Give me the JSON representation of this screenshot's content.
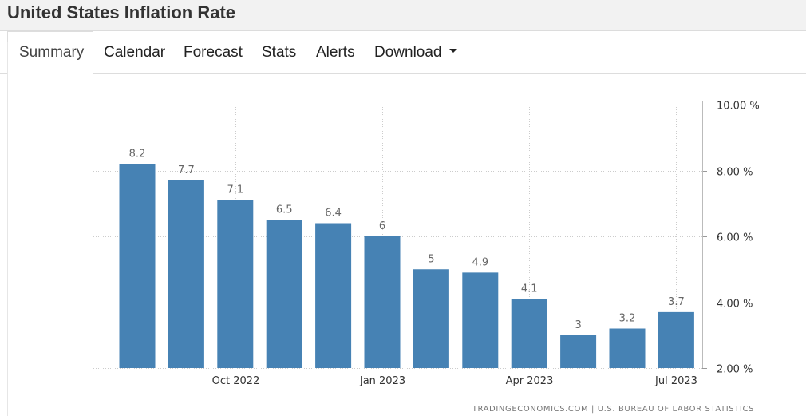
{
  "header": {
    "title": "United States Inflation Rate"
  },
  "tabs": [
    {
      "label": "Summary",
      "active": true
    },
    {
      "label": "Calendar"
    },
    {
      "label": "Forecast"
    },
    {
      "label": "Stats"
    },
    {
      "label": "Alerts"
    },
    {
      "label": "Download",
      "has_dropdown": true,
      "icon": "caret-down-icon"
    }
  ],
  "chart_data": {
    "type": "bar",
    "categories": [
      "2022-08",
      "2022-09",
      "2022-10",
      "2022-11",
      "2022-12",
      "2023-01",
      "2023-02",
      "2023-03",
      "2023-04",
      "2023-05",
      "2023-06",
      "2023-07"
    ],
    "values": [
      8.2,
      7.7,
      7.1,
      6.5,
      6.4,
      6,
      5,
      4.9,
      4.1,
      3,
      3.2,
      3.7
    ],
    "data_labels": [
      "8.2",
      "7.7",
      "7.1",
      "6.5",
      "6.4",
      "6",
      "5",
      "4.9",
      "4.1",
      "3",
      "3.2",
      "3.7"
    ],
    "x_ticks": [
      {
        "at": "2022-10",
        "label": "Oct 2022"
      },
      {
        "at": "2023-01",
        "label": "Jan 2023"
      },
      {
        "at": "2023-04",
        "label": "Apr 2023"
      },
      {
        "at": "2023-07",
        "label": "Jul 2023"
      }
    ],
    "y_ticks": [
      {
        "value": 10,
        "label": "10.00 %"
      },
      {
        "value": 8,
        "label": "8.00 %"
      },
      {
        "value": 6,
        "label": "6.00 %"
      },
      {
        "value": 4,
        "label": "4.00 %"
      },
      {
        "value": 2,
        "label": "2.00 %"
      }
    ],
    "ylim": [
      2,
      10
    ],
    "y_axis_side": "right",
    "grid": true,
    "bar_color": "#4682b4"
  },
  "source": "TRADINGECONOMICS.COM | U.S. BUREAU OF LABOR STATISTICS"
}
